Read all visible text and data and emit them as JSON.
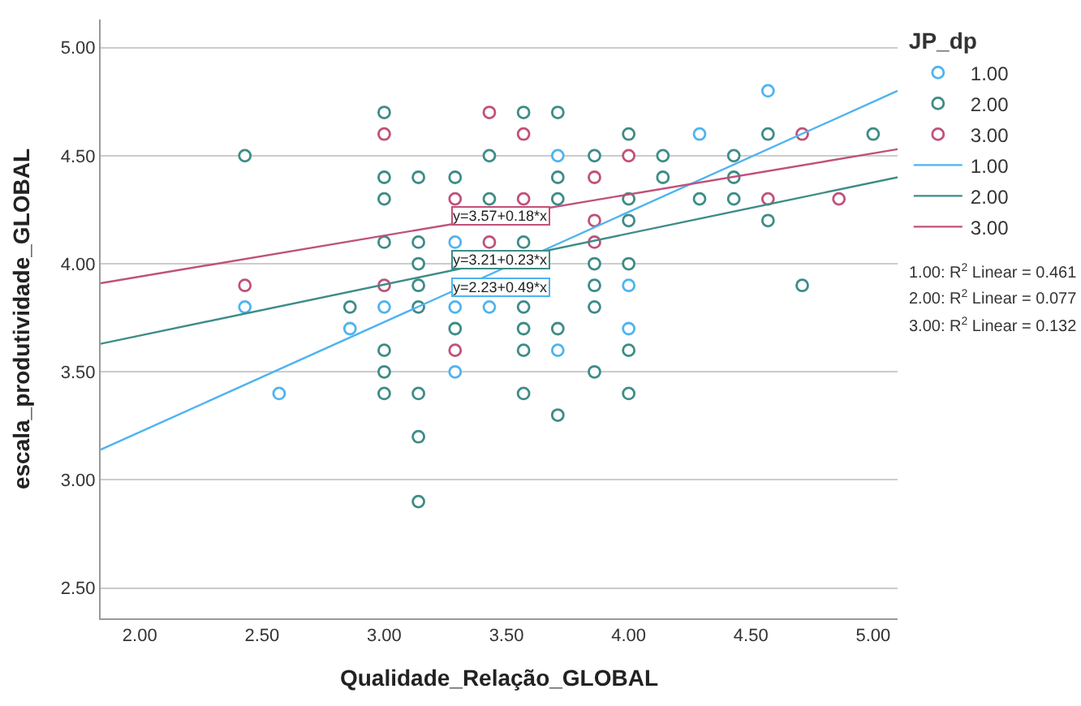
{
  "chart_data": {
    "type": "scatter",
    "xlabel": "Qualidade_Relação_GLOBAL",
    "ylabel": "escala_produtividade_GLOBAL",
    "legend_title": "JP_dp",
    "xlim": [
      1.84,
      5.1
    ],
    "ylim": [
      2.36,
      5.13
    ],
    "xticks": [
      {
        "value": 2,
        "label": "2.00"
      },
      {
        "value": 2.5,
        "label": "2.50"
      },
      {
        "value": 3,
        "label": "3.00"
      },
      {
        "value": 3.5,
        "label": "3.50"
      },
      {
        "value": 4,
        "label": "4.00"
      },
      {
        "value": 4.5,
        "label": "4.50"
      },
      {
        "value": 5,
        "label": "5.00"
      }
    ],
    "yticks": [
      {
        "value": 2.5,
        "label": "2.50"
      },
      {
        "value": 3,
        "label": "3.00"
      },
      {
        "value": 3.5,
        "label": "3.50"
      },
      {
        "value": 4,
        "label": "4.00"
      },
      {
        "value": 4.5,
        "label": "4.50"
      },
      {
        "value": 5,
        "label": "5.00"
      }
    ],
    "grid": "y",
    "legend": "top right",
    "series": [
      {
        "name": "1.00",
        "marker": "circle",
        "color": "#4fb3f0",
        "x": [
          2.43,
          2.57,
          2.86,
          3.0,
          3.29,
          3.29,
          3.43,
          3.29,
          3.71,
          3.71,
          4.57,
          4.29,
          4.0,
          4.0
        ],
        "values": [
          3.8,
          3.4,
          3.7,
          3.8,
          4.1,
          3.8,
          3.8,
          3.5,
          4.5,
          3.6,
          4.8,
          4.6,
          3.9,
          3.7
        ]
      },
      {
        "name": "2.00",
        "marker": "circle",
        "color": "#3d8c87",
        "x": [
          2.43,
          3.0,
          3.57,
          3.71,
          3.43,
          3.0,
          3.14,
          3.29,
          3.71,
          3.0,
          3.43,
          3.71,
          3.0,
          3.14,
          3.57,
          3.14,
          3.14,
          2.86,
          3.14,
          3.57,
          3.29,
          3.57,
          3.71,
          3.0,
          3.57,
          3.0,
          3.0,
          3.14,
          3.57,
          3.71,
          3.14,
          3.14,
          3.86,
          4.0,
          3.86,
          4.0,
          4.0,
          4.57,
          5.0,
          3.86,
          4.14,
          4.43,
          4.14,
          4.43,
          4.0,
          4.29,
          4.43,
          4.0,
          4.57,
          3.86,
          4.0,
          3.86,
          4.71
        ],
        "values": [
          4.5,
          4.7,
          4.7,
          4.7,
          4.5,
          4.4,
          4.4,
          4.4,
          4.4,
          4.3,
          4.3,
          4.3,
          4.1,
          4.1,
          4.1,
          4.0,
          3.9,
          3.8,
          3.8,
          3.8,
          3.7,
          3.7,
          3.7,
          3.6,
          3.6,
          3.5,
          3.4,
          3.4,
          3.4,
          3.3,
          3.2,
          2.9,
          3.8,
          3.6,
          3.5,
          3.4,
          4.6,
          4.6,
          4.6,
          4.5,
          4.5,
          4.5,
          4.4,
          4.4,
          4.3,
          4.3,
          4.3,
          4.2,
          4.2,
          4.0,
          4.0,
          3.9,
          3.9
        ]
      },
      {
        "name": "3.00",
        "marker": "circle",
        "color": "#c0517a",
        "x": [
          3.0,
          3.43,
          3.57,
          3.29,
          3.57,
          3.43,
          2.43,
          3.0,
          3.29,
          4.71,
          4.0,
          3.86,
          4.57,
          4.86,
          3.86,
          3.86
        ],
        "values": [
          4.6,
          4.7,
          4.6,
          4.3,
          4.3,
          4.1,
          3.9,
          3.9,
          3.6,
          4.6,
          4.5,
          4.4,
          4.3,
          4.3,
          4.2,
          4.1
        ]
      },
      {
        "name": "1.00",
        "type": "line",
        "color": "#4fb3f0",
        "x": [
          1.84,
          5.1
        ],
        "values": [
          3.14,
          4.8
        ]
      },
      {
        "name": "2.00",
        "type": "line",
        "color": "#3d8c87",
        "x": [
          1.84,
          5.1
        ],
        "values": [
          3.63,
          4.4
        ]
      },
      {
        "name": "3.00",
        "type": "line",
        "color": "#c0517a",
        "x": [
          1.84,
          5.1
        ],
        "values": [
          3.91,
          4.53
        ]
      }
    ],
    "annotations": [
      "y=2.23+0.49*x",
      "y=3.21+0.23*x",
      "y=3.57+0.18*x",
      "1.00: R$^{2}$ Linear = 0.461",
      "2.00: R$^{2}$ Linear = 0.077",
      "3.00: R$^{2}$ Linear = 0.132"
    ]
  }
}
